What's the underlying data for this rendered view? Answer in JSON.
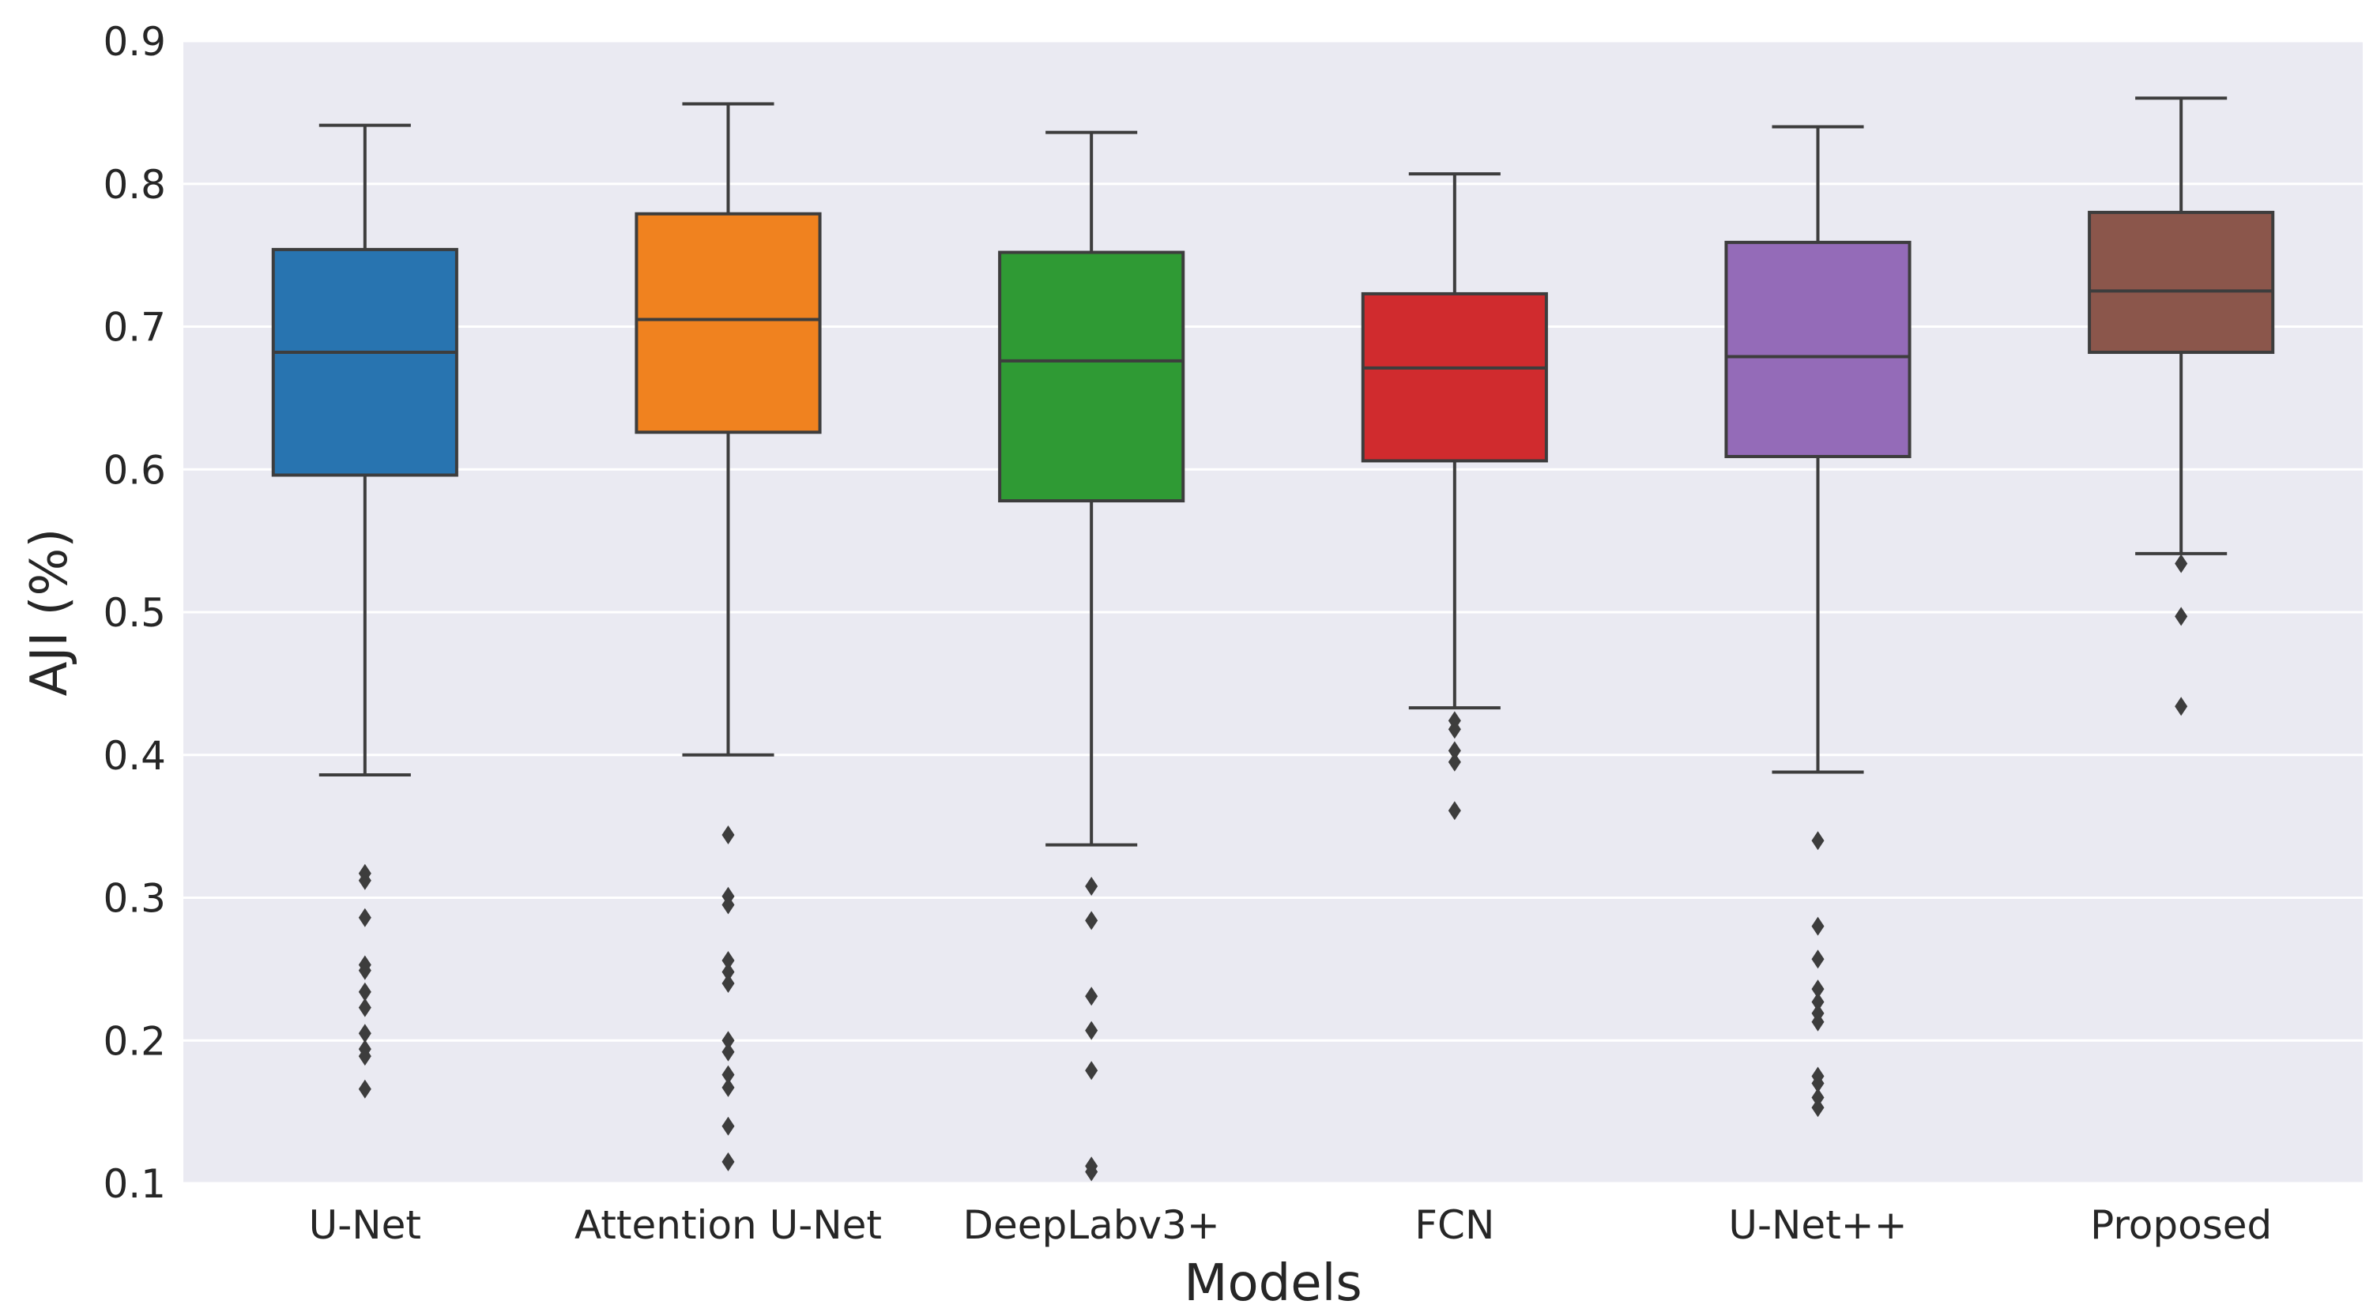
{
  "chart_data": {
    "type": "box",
    "title": "",
    "xlabel": "Models",
    "ylabel": "AJI (%)",
    "ylim": [
      0.1,
      0.9
    ],
    "yticks": [
      0.1,
      0.2,
      0.3,
      0.4,
      0.5,
      0.6,
      0.7,
      0.8,
      0.9
    ],
    "ytick_labels": [
      "0.1",
      "0.2",
      "0.3",
      "0.4",
      "0.5",
      "0.6",
      "0.7",
      "0.8",
      "0.9"
    ],
    "grid": true,
    "categories": [
      "U-Net",
      "Attention U-Net",
      "DeepLabv3+",
      "FCN",
      "U-Net++",
      "Proposed"
    ],
    "boxes": [
      {
        "name": "U-Net",
        "color": "#2874b0",
        "whislo": 0.386,
        "q1": 0.596,
        "med": 0.682,
        "q3": 0.754,
        "whishi": 0.841,
        "fliers": [
          0.317,
          0.312,
          0.286,
          0.253,
          0.249,
          0.234,
          0.223,
          0.205,
          0.194,
          0.189,
          0.166
        ]
      },
      {
        "name": "Attention U-Net",
        "color": "#f0821f",
        "whislo": 0.4,
        "q1": 0.626,
        "med": 0.705,
        "q3": 0.779,
        "whishi": 0.856,
        "fliers": [
          0.344,
          0.301,
          0.295,
          0.256,
          0.248,
          0.24,
          0.2,
          0.192,
          0.176,
          0.167,
          0.14,
          0.115
        ]
      },
      {
        "name": "DeepLabv3+",
        "color": "#2f9a34",
        "whislo": 0.337,
        "q1": 0.578,
        "med": 0.676,
        "q3": 0.752,
        "whishi": 0.836,
        "fliers": [
          0.308,
          0.284,
          0.231,
          0.207,
          0.179,
          0.112,
          0.108
        ]
      },
      {
        "name": "FCN",
        "color": "#d02b2e",
        "whislo": 0.433,
        "q1": 0.606,
        "med": 0.671,
        "q3": 0.723,
        "whishi": 0.807,
        "fliers": [
          0.424,
          0.418,
          0.403,
          0.395,
          0.361
        ]
      },
      {
        "name": "U-Net++",
        "color": "#946bb8",
        "whislo": 0.388,
        "q1": 0.609,
        "med": 0.679,
        "q3": 0.759,
        "whishi": 0.84,
        "fliers": [
          0.34,
          0.28,
          0.257,
          0.236,
          0.227,
          0.219,
          0.213,
          0.175,
          0.17,
          0.16,
          0.153
        ]
      },
      {
        "name": "Proposed",
        "color": "#8b564b",
        "whislo": 0.541,
        "q1": 0.682,
        "med": 0.725,
        "q3": 0.78,
        "whishi": 0.86,
        "fliers": [
          0.534,
          0.497,
          0.434
        ]
      }
    ],
    "colors": {
      "plot_background": "#eaeaf2",
      "grid": "#ffffff",
      "edges": "#3d3d3d",
      "text": "#262626"
    }
  }
}
